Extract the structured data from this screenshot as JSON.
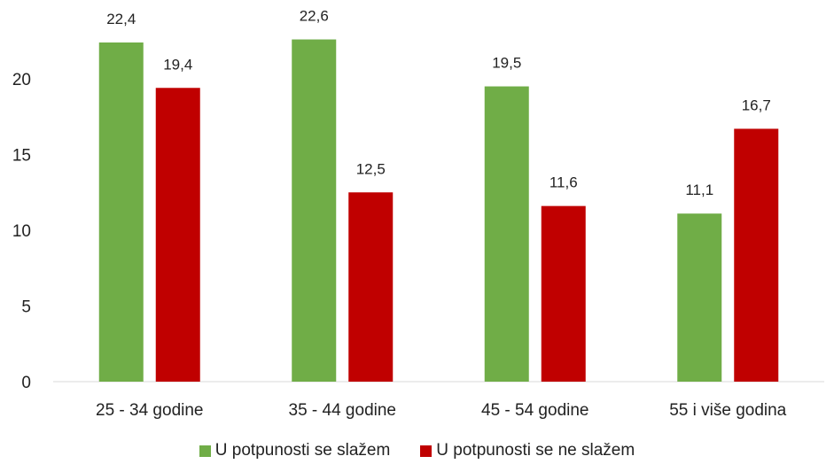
{
  "chart_data": {
    "type": "bar",
    "categories": [
      "25 - 34 godine",
      "35 - 44 godine",
      "45 - 54 godine",
      "55 i više godina"
    ],
    "series": [
      {
        "name": "U potpunosti se slažem",
        "values": [
          22.4,
          22.6,
          19.5,
          11.1
        ],
        "labels": [
          "22,4",
          "22,6",
          "19,5",
          "11,1"
        ],
        "color": "#70ad47"
      },
      {
        "name": "U potpunosti se ne slažem",
        "values": [
          19.4,
          12.5,
          11.6,
          16.7
        ],
        "labels": [
          "19,4",
          "12,5",
          "11,6",
          "16,7"
        ],
        "color": "#c00000"
      }
    ],
    "yticks": [
      0,
      5,
      10,
      15,
      20
    ],
    "ylim": [
      0,
      25
    ],
    "grid": false,
    "legend_position": "bottom"
  }
}
